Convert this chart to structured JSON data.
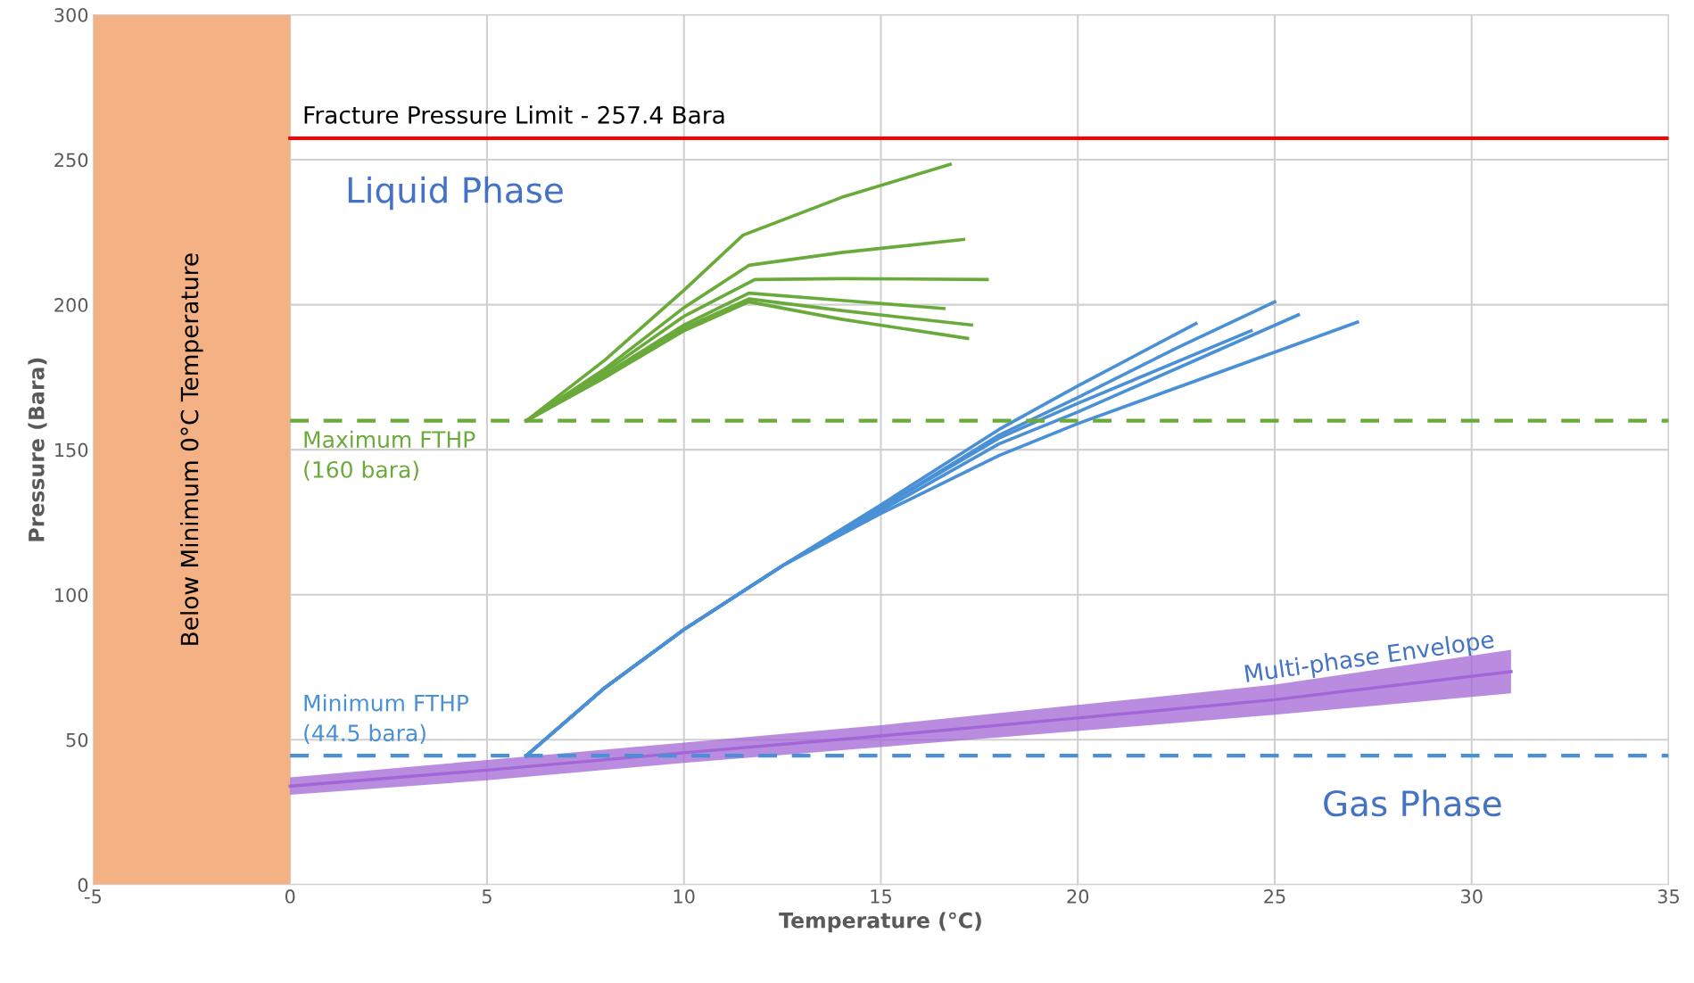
{
  "chart_data": {
    "type": "line",
    "xlabel": "Temperature (°C)",
    "ylabel": "Pressure (Bara)",
    "xlim": [
      -5,
      35
    ],
    "xticks": [
      -5,
      0,
      5,
      10,
      15,
      20,
      25,
      30,
      35
    ],
    "ylim": [
      0,
      300
    ],
    "yticks": [
      0,
      50,
      100,
      150,
      200,
      250,
      300
    ],
    "grid": true,
    "legend": false,
    "line_style": "solid",
    "marker": "none",
    "series": [
      {
        "color": "#6aaa3a",
        "x": [
          6,
          8,
          10,
          11.5,
          14,
          16.76
        ],
        "values": [
          160,
          181,
          205,
          224,
          237,
          248.4
        ]
      },
      {
        "color": "#6aaa3a",
        "x": [
          6,
          8,
          10,
          11.65,
          14,
          17.1
        ],
        "values": [
          160,
          178,
          199,
          213.6,
          218,
          222.5
        ]
      },
      {
        "color": "#6aaa3a",
        "x": [
          6,
          8,
          10,
          11.8,
          14,
          17.7
        ],
        "values": [
          160,
          177,
          196,
          208.7,
          209,
          208.7
        ]
      },
      {
        "color": "#6aaa3a",
        "x": [
          6,
          8,
          10,
          11.65,
          14,
          16.6
        ],
        "values": [
          160,
          176,
          193,
          204,
          201.5,
          198.7
        ]
      },
      {
        "color": "#6aaa3a",
        "x": [
          6,
          8,
          10,
          11.65,
          14,
          17.3
        ],
        "values": [
          160,
          175,
          192,
          202,
          198,
          193
        ]
      },
      {
        "color": "#6aaa3a",
        "x": [
          6,
          8,
          10,
          11.65,
          14,
          17.2
        ],
        "values": [
          160,
          175,
          191,
          201,
          195,
          188.4
        ]
      },
      {
        "color": "#4a90d6",
        "x": [
          6,
          8,
          10,
          12.5,
          15,
          18,
          20,
          23
        ],
        "values": [
          44.5,
          68,
          88,
          110,
          131,
          157,
          172,
          193.5
        ]
      },
      {
        "color": "#4a90d6",
        "x": [
          6,
          8,
          10,
          12.5,
          15,
          18,
          20,
          22.5,
          25
        ],
        "values": [
          44.5,
          68,
          88,
          110,
          130,
          155,
          168,
          185,
          201
        ]
      },
      {
        "color": "#4a90d6",
        "x": [
          6,
          8,
          10,
          12.5,
          15,
          18,
          20,
          24.4
        ],
        "values": [
          44.5,
          68,
          88,
          110,
          130,
          154,
          166,
          191
        ]
      },
      {
        "color": "#4a90d6",
        "x": [
          6,
          8,
          10,
          12.5,
          15,
          18,
          20,
          25.6
        ],
        "values": [
          44.5,
          68,
          88,
          110,
          129,
          152,
          163,
          196.5
        ]
      },
      {
        "color": "#4a90d6",
        "x": [
          6,
          8,
          10,
          12.5,
          15,
          18,
          20,
          27.1
        ],
        "values": [
          44.5,
          68,
          88,
          110,
          128,
          148,
          159,
          194
        ]
      },
      {
        "color": "#a366d6",
        "x": [
          0,
          5,
          10,
          15,
          20,
          25,
          31
        ],
        "values": [
          34,
          39.5,
          45.5,
          51.3,
          57.5,
          63.8,
          73.5
        ],
        "lower": [
          31,
          36,
          42,
          47.5,
          53,
          58.6,
          66
        ],
        "upper": [
          37,
          43,
          49,
          55,
          62,
          69,
          81
        ]
      }
    ],
    "bands": [
      {
        "axis": "x",
        "from": -5,
        "to": 0,
        "label": "Below Minimum 0°C Temperature",
        "color": "#f4b183"
      }
    ],
    "ref_lines": [
      {
        "axis": "y",
        "value": 257.4,
        "label": "Fracture Pressure Limit - 257.4 Bara",
        "color": "#ff0000",
        "line_style": "solid"
      },
      {
        "axis": "y",
        "value": 160,
        "label": "Maximum FTHP\n(160 bara)",
        "color": "#6aaa3a",
        "line_style": "dashed"
      },
      {
        "axis": "y",
        "value": 44.5,
        "label": "Minimum FTHP\n(44.5 bara)",
        "color": "#4a90d6",
        "line_style": "dashed"
      }
    ],
    "annotations": [
      "Liquid Phase",
      "Gas Phase",
      "Multi-phase Envelope"
    ]
  }
}
